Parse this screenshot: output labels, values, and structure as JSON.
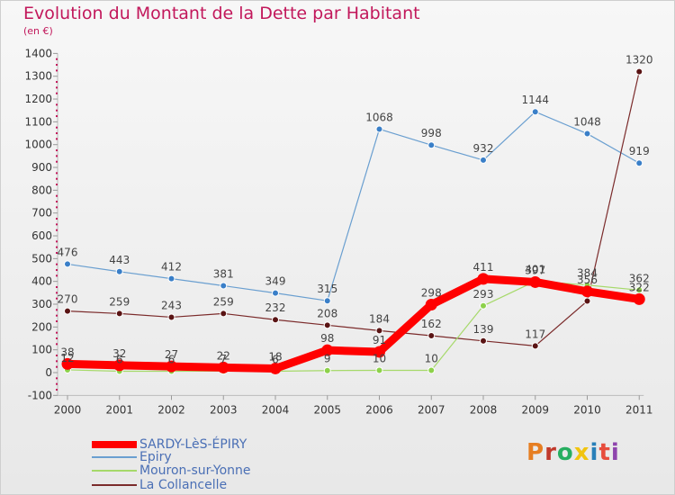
{
  "header": {
    "title": "Evolution du Montant de la Dette par Habitant",
    "subtitle": "(en €)"
  },
  "logo": {
    "text": "Proxiti"
  },
  "chart_data": {
    "type": "line",
    "title": "Evolution du Montant de la Dette par Habitant",
    "ylabel": "(en €)",
    "xlabel": "",
    "categories": [
      "2000",
      "2001",
      "2002",
      "2003",
      "2004",
      "2005",
      "2006",
      "2007",
      "2008",
      "2009",
      "2010",
      "2011"
    ],
    "ylim": [
      -100,
      1400
    ],
    "yticks": [
      -100,
      0,
      100,
      200,
      300,
      400,
      500,
      600,
      700,
      800,
      900,
      1000,
      1100,
      1200,
      1300,
      1400
    ],
    "grid": false,
    "legend": "bottom-left",
    "series": [
      {
        "name": "SARDY-LèS-ÉPIRY",
        "color": "#ff0000",
        "values": [
          38,
          32,
          27,
          22,
          18,
          98,
          91,
          298,
          411,
          397,
          356,
          322
        ],
        "labels": [
          "38",
          "32",
          "27",
          "22",
          "18",
          "98",
          "91",
          "298",
          "411",
          "397",
          "356",
          "322"
        ]
      },
      {
        "name": "Epiry",
        "color": "#6a9fd0",
        "values": [
          476,
          443,
          412,
          381,
          349,
          315,
          1068,
          998,
          932,
          1144,
          1048,
          919
        ],
        "labels": [
          "476",
          "443",
          "412",
          "381",
          "349",
          "315",
          "1068",
          "998",
          "932",
          "1144",
          "1048",
          "919"
        ]
      },
      {
        "name": "Mouron-sur-Yonne",
        "color": "#a6d96a",
        "values": [
          12,
          6,
          6,
          7,
          6,
          9,
          10,
          10,
          293,
          401,
          384,
          362
        ],
        "labels": [
          "12",
          "6",
          "6",
          "7",
          "6",
          "9",
          "10",
          "10",
          "293",
          "401",
          "384",
          "362"
        ]
      },
      {
        "name": "La Collancelle",
        "color": "#7b2b2b",
        "values": [
          270,
          259,
          243,
          259,
          232,
          208,
          184,
          162,
          139,
          117,
          314,
          1320
        ],
        "labels": [
          "270",
          "259",
          "243",
          "259",
          "232",
          "208",
          "184",
          "162",
          "139",
          "117",
          "",
          "1320"
        ]
      }
    ]
  }
}
